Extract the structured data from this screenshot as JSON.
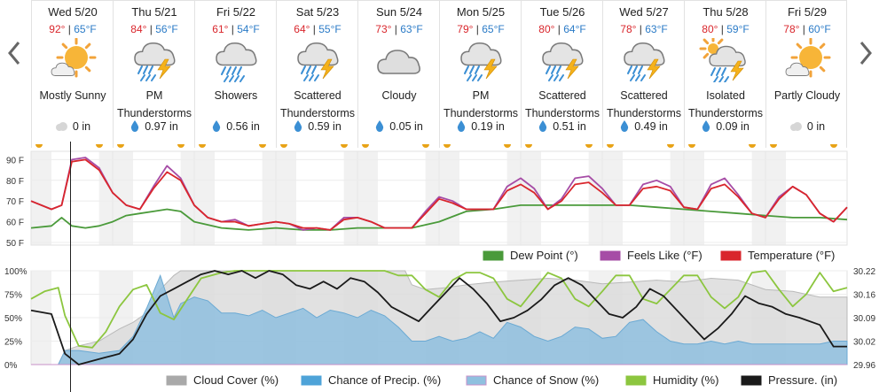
{
  "forecast": {
    "days": [
      {
        "name": "Wed 5/20",
        "hi": "92°",
        "lo": "65°F",
        "condition_lines": [
          "Mostly Sunny"
        ],
        "icon": "mostly-sunny-icon",
        "precip": "0 in",
        "precip_icon": "cloud-icon"
      },
      {
        "name": "Thu 5/21",
        "hi": "84°",
        "lo": "56°F",
        "condition_lines": [
          "PM",
          "Thunderstorms"
        ],
        "icon": "thunderstorm-icon",
        "precip": "0.97 in",
        "precip_icon": "raindrop-icon"
      },
      {
        "name": "Fri 5/22",
        "hi": "61°",
        "lo": "54°F",
        "condition_lines": [
          "Showers"
        ],
        "icon": "showers-icon",
        "precip": "0.56 in",
        "precip_icon": "raindrop-icon"
      },
      {
        "name": "Sat 5/23",
        "hi": "64°",
        "lo": "55°F",
        "condition_lines": [
          "Scattered",
          "Thunderstorms"
        ],
        "icon": "thunderstorm-icon",
        "precip": "0.59 in",
        "precip_icon": "raindrop-icon"
      },
      {
        "name": "Sun 5/24",
        "hi": "73°",
        "lo": "63°F",
        "condition_lines": [
          "Cloudy"
        ],
        "icon": "cloudy-icon",
        "precip": "0.05 in",
        "precip_icon": "raindrop-icon"
      },
      {
        "name": "Mon 5/25",
        "hi": "79°",
        "lo": "65°F",
        "condition_lines": [
          "PM",
          "Thunderstorms"
        ],
        "icon": "thunderstorm-icon",
        "precip": "0.19 in",
        "precip_icon": "raindrop-icon"
      },
      {
        "name": "Tue 5/26",
        "hi": "80°",
        "lo": "64°F",
        "condition_lines": [
          "Scattered",
          "Thunderstorms"
        ],
        "icon": "thunderstorm-icon",
        "precip": "0.51 in",
        "precip_icon": "raindrop-icon"
      },
      {
        "name": "Wed 5/27",
        "hi": "78°",
        "lo": "63°F",
        "condition_lines": [
          "Scattered",
          "Thunderstorms"
        ],
        "icon": "thunderstorm-icon",
        "precip": "0.49 in",
        "precip_icon": "raindrop-icon"
      },
      {
        "name": "Thu 5/28",
        "hi": "80°",
        "lo": "59°F",
        "condition_lines": [
          "Isolated",
          "Thunderstorms"
        ],
        "icon": "sun-thunderstorm-icon",
        "precip": "0.09 in",
        "precip_icon": "raindrop-icon"
      },
      {
        "name": "Fri 5/29",
        "hi": "78°",
        "lo": "60°F",
        "condition_lines": [
          "Partly Cloudy"
        ],
        "icon": "partly-cloudy-icon",
        "precip": "0 in",
        "precip_icon": "cloud-icon"
      }
    ]
  },
  "colors": {
    "temperature": "#d9262c",
    "feels_like": "#a64ca6",
    "dew_point": "#4a9a3a",
    "cloud_cover": "#cfcfcf",
    "precip_chance": "#8fc0df",
    "snow_chance": "#c890c8",
    "humidity": "#8cc63f",
    "pressure": "#1a1a1a",
    "hi_temp": "#d9262c",
    "lo_temp": "#2b7bc7"
  },
  "chart_data": [
    {
      "type": "line",
      "x_unit": "hours from start of Wed 5/20",
      "xlim": [
        0,
        240
      ],
      "yticks": [
        "90 F",
        "80 F",
        "70 F",
        "60 F",
        "50 F"
      ],
      "ylim": [
        47,
        94
      ],
      "legend": [
        "Dew Point (°)",
        "Feels Like (°F)",
        "Temperature (°F)"
      ],
      "legend_placement": "bottom-right",
      "series": [
        {
          "name": "Temperature (°F)",
          "x": [
            0,
            6,
            9,
            12,
            16,
            20,
            24,
            28,
            32,
            36,
            40,
            44,
            48,
            52,
            56,
            60,
            64,
            68,
            72,
            76,
            80,
            84,
            88,
            92,
            96,
            100,
            104,
            108,
            112,
            116,
            120,
            124,
            128,
            132,
            136,
            140,
            144,
            148,
            152,
            156,
            160,
            164,
            168,
            172,
            176,
            180,
            184,
            188,
            192,
            196,
            200,
            204,
            208,
            212,
            216,
            220,
            224,
            228,
            232,
            236,
            240
          ],
          "y": [
            70,
            66,
            68,
            89,
            90,
            85,
            74,
            68,
            66,
            76,
            84,
            80,
            68,
            62,
            60,
            60,
            58,
            59,
            60,
            59,
            57,
            57,
            56,
            61,
            62,
            60,
            57,
            57,
            57,
            64,
            71,
            69,
            66,
            66,
            66,
            75,
            78,
            74,
            66,
            70,
            78,
            79,
            74,
            68,
            68,
            76,
            77,
            75,
            67,
            66,
            76,
            78,
            72,
            64,
            62,
            71,
            77,
            73,
            64,
            60,
            67
          ]
        },
        {
          "name": "Feels Like (°F)",
          "x": [
            0,
            6,
            9,
            12,
            16,
            20,
            24,
            28,
            32,
            36,
            40,
            44,
            48,
            52,
            56,
            60,
            64,
            68,
            72,
            76,
            80,
            84,
            88,
            92,
            96,
            100,
            104,
            108,
            112,
            116,
            120,
            124,
            128,
            132,
            136,
            140,
            144,
            148,
            152,
            156,
            160,
            164,
            168,
            172,
            176,
            180,
            184,
            188,
            192,
            196,
            200,
            204,
            208,
            212,
            216,
            220,
            224,
            228,
            232,
            236,
            240
          ],
          "y": [
            70,
            66,
            68,
            90,
            91,
            86,
            74,
            68,
            66,
            77,
            87,
            81,
            68,
            62,
            60,
            61,
            58,
            59,
            60,
            59,
            56,
            57,
            56,
            62,
            62,
            60,
            57,
            57,
            57,
            65,
            72,
            70,
            66,
            66,
            66,
            77,
            81,
            76,
            66,
            71,
            81,
            82,
            76,
            68,
            68,
            78,
            80,
            77,
            67,
            66,
            78,
            81,
            73,
            64,
            62,
            72,
            77,
            73,
            64,
            60,
            67
          ]
        },
        {
          "name": "Dew Point (°)",
          "x": [
            0,
            6,
            9,
            12,
            16,
            20,
            24,
            28,
            32,
            36,
            40,
            44,
            48,
            56,
            64,
            72,
            80,
            88,
            96,
            104,
            112,
            120,
            128,
            136,
            144,
            152,
            160,
            168,
            176,
            184,
            192,
            200,
            208,
            216,
            224,
            232,
            240
          ],
          "y": [
            57,
            58,
            62,
            58,
            57,
            58,
            60,
            63,
            64,
            65,
            66,
            65,
            60,
            57,
            56,
            57,
            56,
            56,
            57,
            57,
            57,
            60,
            65,
            66,
            68,
            68,
            68,
            68,
            68,
            67,
            66,
            65,
            64,
            63,
            62,
            62,
            61
          ]
        }
      ]
    },
    {
      "type": "area",
      "x_unit": "hours from start of Wed 5/20",
      "xlim": [
        0,
        240
      ],
      "yticks_left": [
        "100%",
        "75%",
        "50%",
        "25%",
        "0%"
      ],
      "yticks_right": [
        "30.22",
        "30.16",
        "30.09",
        "30.02",
        "29.96"
      ],
      "ylim_left": [
        0,
        100
      ],
      "ylim_right": [
        29.96,
        30.22
      ],
      "legend": [
        "Cloud Cover (%)",
        "Chance of Precip. (%)",
        "Chance of Snow (%)",
        "Humidity (%)",
        "Pressure. (in)"
      ],
      "legend_placement": "bottom-right",
      "series": [
        {
          "name": "Cloud Cover (%)",
          "x": [
            0,
            8,
            10,
            14,
            20,
            26,
            30,
            34,
            38,
            42,
            44,
            48,
            52,
            56,
            62,
            70,
            80,
            90,
            100,
            110,
            112,
            116,
            122,
            128,
            136,
            144,
            152,
            160,
            168,
            176,
            184,
            192,
            200,
            208,
            216,
            224,
            232,
            240
          ],
          "y": [
            0,
            0,
            15,
            20,
            25,
            38,
            45,
            55,
            80,
            95,
            100,
            100,
            100,
            100,
            100,
            100,
            100,
            100,
            100,
            100,
            85,
            80,
            82,
            85,
            88,
            90,
            92,
            90,
            86,
            88,
            90,
            88,
            92,
            90,
            80,
            78,
            72,
            72
          ]
        },
        {
          "name": "Chance of Precip. (%)",
          "x": [
            0,
            8,
            10,
            14,
            20,
            26,
            30,
            34,
            38,
            42,
            44,
            48,
            52,
            56,
            60,
            64,
            68,
            72,
            76,
            80,
            84,
            88,
            92,
            96,
            100,
            104,
            108,
            112,
            116,
            120,
            124,
            128,
            132,
            136,
            140,
            144,
            148,
            152,
            156,
            160,
            164,
            168,
            172,
            176,
            180,
            184,
            188,
            192,
            196,
            200,
            204,
            208,
            212,
            216,
            220,
            224,
            228,
            232,
            236,
            240
          ],
          "y": [
            0,
            0,
            15,
            15,
            12,
            15,
            30,
            60,
            95,
            50,
            65,
            72,
            68,
            55,
            55,
            52,
            58,
            50,
            55,
            60,
            50,
            58,
            55,
            50,
            58,
            52,
            40,
            25,
            25,
            30,
            25,
            28,
            35,
            28,
            45,
            40,
            30,
            25,
            30,
            40,
            38,
            28,
            30,
            45,
            48,
            35,
            25,
            22,
            22,
            25,
            22,
            25,
            22,
            22,
            22,
            22,
            22,
            22,
            25,
            25
          ]
        },
        {
          "name": "Chance of Snow (%)",
          "x": [
            0,
            240
          ],
          "y": [
            0,
            0
          ]
        },
        {
          "name": "Humidity (%)",
          "x": [
            0,
            4,
            8,
            10,
            14,
            18,
            22,
            26,
            30,
            34,
            38,
            42,
            46,
            50,
            56,
            60,
            64,
            68,
            72,
            76,
            80,
            84,
            88,
            92,
            96,
            100,
            104,
            108,
            112,
            116,
            120,
            124,
            128,
            132,
            136,
            140,
            144,
            148,
            152,
            156,
            160,
            164,
            168,
            172,
            176,
            180,
            184,
            188,
            192,
            196,
            200,
            204,
            208,
            212,
            216,
            220,
            224,
            228,
            232,
            236,
            240
          ],
          "y": [
            70,
            78,
            82,
            52,
            20,
            18,
            35,
            62,
            80,
            85,
            55,
            48,
            70,
            92,
            98,
            100,
            100,
            100,
            100,
            100,
            100,
            100,
            100,
            100,
            100,
            100,
            100,
            95,
            95,
            80,
            72,
            90,
            98,
            98,
            92,
            70,
            62,
            80,
            98,
            92,
            70,
            62,
            78,
            95,
            95,
            70,
            65,
            80,
            95,
            95,
            72,
            60,
            72,
            98,
            100,
            80,
            62,
            75,
            98,
            78,
            82
          ]
        },
        {
          "name": "Pressure. (in)",
          "x": [
            0,
            6,
            10,
            14,
            18,
            22,
            26,
            30,
            34,
            38,
            42,
            46,
            50,
            54,
            58,
            62,
            66,
            70,
            74,
            78,
            82,
            86,
            90,
            94,
            98,
            102,
            106,
            110,
            114,
            118,
            122,
            126,
            130,
            134,
            138,
            142,
            146,
            150,
            154,
            158,
            162,
            166,
            170,
            174,
            178,
            182,
            186,
            190,
            194,
            198,
            202,
            206,
            210,
            214,
            218,
            222,
            226,
            232,
            236,
            240
          ],
          "y": [
            30.11,
            30.1,
            29.99,
            29.96,
            29.97,
            29.98,
            29.99,
            30.03,
            30.1,
            30.15,
            30.17,
            30.19,
            30.21,
            30.22,
            30.21,
            30.22,
            30.2,
            30.22,
            30.21,
            30.18,
            30.17,
            30.19,
            30.17,
            30.2,
            30.19,
            30.16,
            30.12,
            30.1,
            30.08,
            30.12,
            30.16,
            30.2,
            30.17,
            30.13,
            30.08,
            30.09,
            30.11,
            30.14,
            30.18,
            30.2,
            30.18,
            30.14,
            30.1,
            30.09,
            30.12,
            30.17,
            30.15,
            30.11,
            30.07,
            30.03,
            30.06,
            30.1,
            30.15,
            30.13,
            30.12,
            30.1,
            30.09,
            30.07,
            30.01,
            30.01
          ]
        }
      ]
    }
  ]
}
